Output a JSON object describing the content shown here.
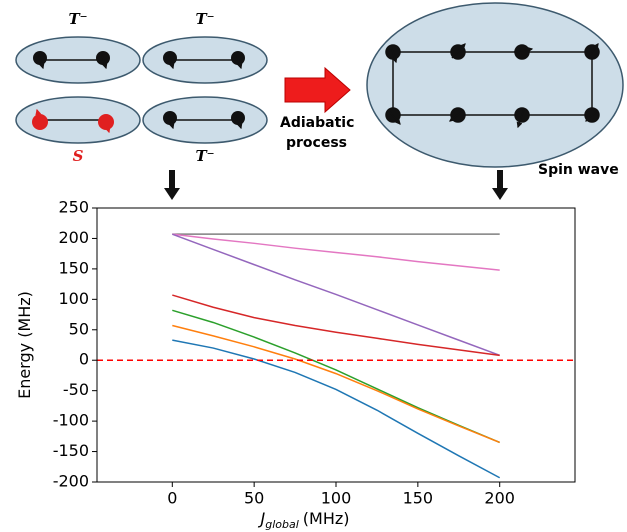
{
  "diagram": {
    "state_labels": [
      "T⁻",
      "T⁻",
      "S",
      "T⁻"
    ],
    "arrow_label": [
      "Adiabatic",
      "process"
    ],
    "final_label": "Spin wave"
  },
  "chart_data": {
    "type": "line",
    "ylabel": "Energy (MHz)",
    "xlabel": {
      "symbol": "J",
      "subscript": "global",
      "unit": "(MHz)"
    },
    "x": [
      0,
      25,
      50,
      75,
      100,
      125,
      150,
      175,
      200
    ],
    "series": [
      {
        "color": "#7f7f7f",
        "values": [
          207,
          207,
          207,
          207,
          207,
          207,
          207,
          207,
          207
        ]
      },
      {
        "color": "#e377c2",
        "values": [
          207,
          199,
          192,
          184,
          177,
          170,
          162,
          155,
          148
        ]
      },
      {
        "color": "#9467bd",
        "values": [
          207,
          182,
          157,
          132,
          108,
          83,
          58,
          33,
          8
        ]
      },
      {
        "color": "#d62728",
        "values": [
          107,
          87,
          70,
          57,
          46,
          36,
          26,
          17,
          8
        ]
      },
      {
        "color": "#2ca02c",
        "values": [
          82,
          62,
          38,
          12,
          -16,
          -47,
          -78,
          -107,
          -135
        ]
      },
      {
        "color": "#ff7f0e",
        "values": [
          57,
          40,
          22,
          2,
          -22,
          -50,
          -80,
          -108,
          -135
        ]
      },
      {
        "color": "#1f77b4",
        "values": [
          33,
          20,
          2,
          -20,
          -48,
          -82,
          -120,
          -157,
          -193
        ]
      }
    ],
    "hline": {
      "value": 0,
      "color": "#ff0000",
      "dashed": true
    },
    "xlim": [
      -46,
      246
    ],
    "ylim": [
      -200,
      250
    ],
    "xticks": [
      0,
      50,
      100,
      150,
      200
    ],
    "yticks": [
      -200,
      -150,
      -100,
      -50,
      0,
      50,
      100,
      150,
      200,
      250
    ]
  }
}
